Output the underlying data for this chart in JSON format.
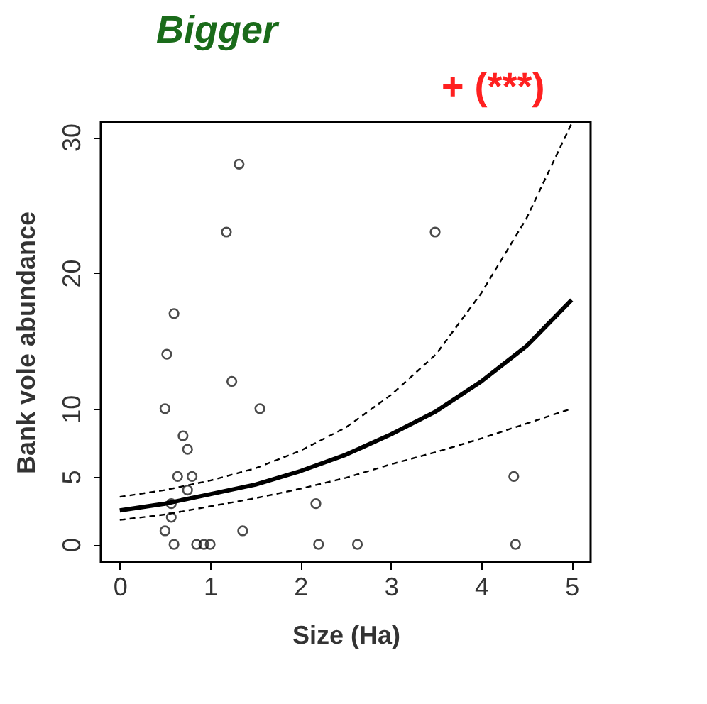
{
  "chart_data": {
    "type": "scatter",
    "title": "Bigger",
    "annotations": [
      "+ (***)"
    ],
    "xlabel": "Size (Ha)",
    "ylabel": "Bank vole abundance",
    "xlim": [
      -0.21,
      5.21
    ],
    "ylim": [
      -1.3,
      31.1
    ],
    "xticks": [
      0,
      1,
      2,
      3,
      4,
      5
    ],
    "yticks": [
      0,
      5,
      10,
      20,
      30
    ],
    "grid": false,
    "marker": "circle",
    "series": [
      {
        "color": "#000000",
        "x": [
          1.32,
          1.18,
          0.6,
          0.52,
          1.24,
          0.5,
          1.55,
          0.7,
          0.75,
          0.64,
          0.8,
          0.75,
          0.57,
          0.57,
          0.5,
          0.6,
          0.85,
          0.93,
          1.0,
          1.36,
          2.17,
          2.2,
          2.63,
          3.49,
          4.36,
          4.38
        ],
        "values": [
          28,
          23,
          17,
          14,
          12,
          10,
          10,
          8,
          7,
          5,
          5,
          4,
          3,
          2,
          1,
          0,
          0,
          0,
          0,
          1,
          3,
          0,
          0,
          23,
          5,
          0
        ]
      },
      {
        "type": "line",
        "marker": "none",
        "color": "#000000",
        "line_style": "solid",
        "x": [
          0,
          0.5,
          1,
          1.5,
          2,
          2.5,
          3,
          3.5,
          4,
          4.5,
          5
        ],
        "values": [
          2.5,
          3.0,
          3.7,
          4.4,
          5.4,
          6.6,
          8.1,
          9.8,
          12,
          14.6,
          18
        ]
      },
      {
        "type": "line",
        "color": "#000000",
        "line_style": "dashed",
        "x": [
          0,
          0.5,
          1,
          1.5,
          2,
          2.5,
          3,
          3.5,
          4,
          4.5,
          5
        ],
        "marker": "none",
        "values": [
          3.5,
          4.0,
          4.7,
          5.6,
          6.9,
          8.6,
          11,
          14,
          18.5,
          24,
          31
        ]
      },
      {
        "type": "line",
        "color": "#000000",
        "line_style": "dashed",
        "x": [
          0,
          0.5,
          1,
          1.5,
          2,
          2.5,
          3,
          3.5,
          4,
          4.5,
          5
        ],
        "marker": "none",
        "values": [
          1.8,
          2.2,
          2.8,
          3.4,
          4.1,
          4.9,
          5.9,
          6.8,
          7.8,
          8.9,
          10
        ]
      }
    ]
  }
}
